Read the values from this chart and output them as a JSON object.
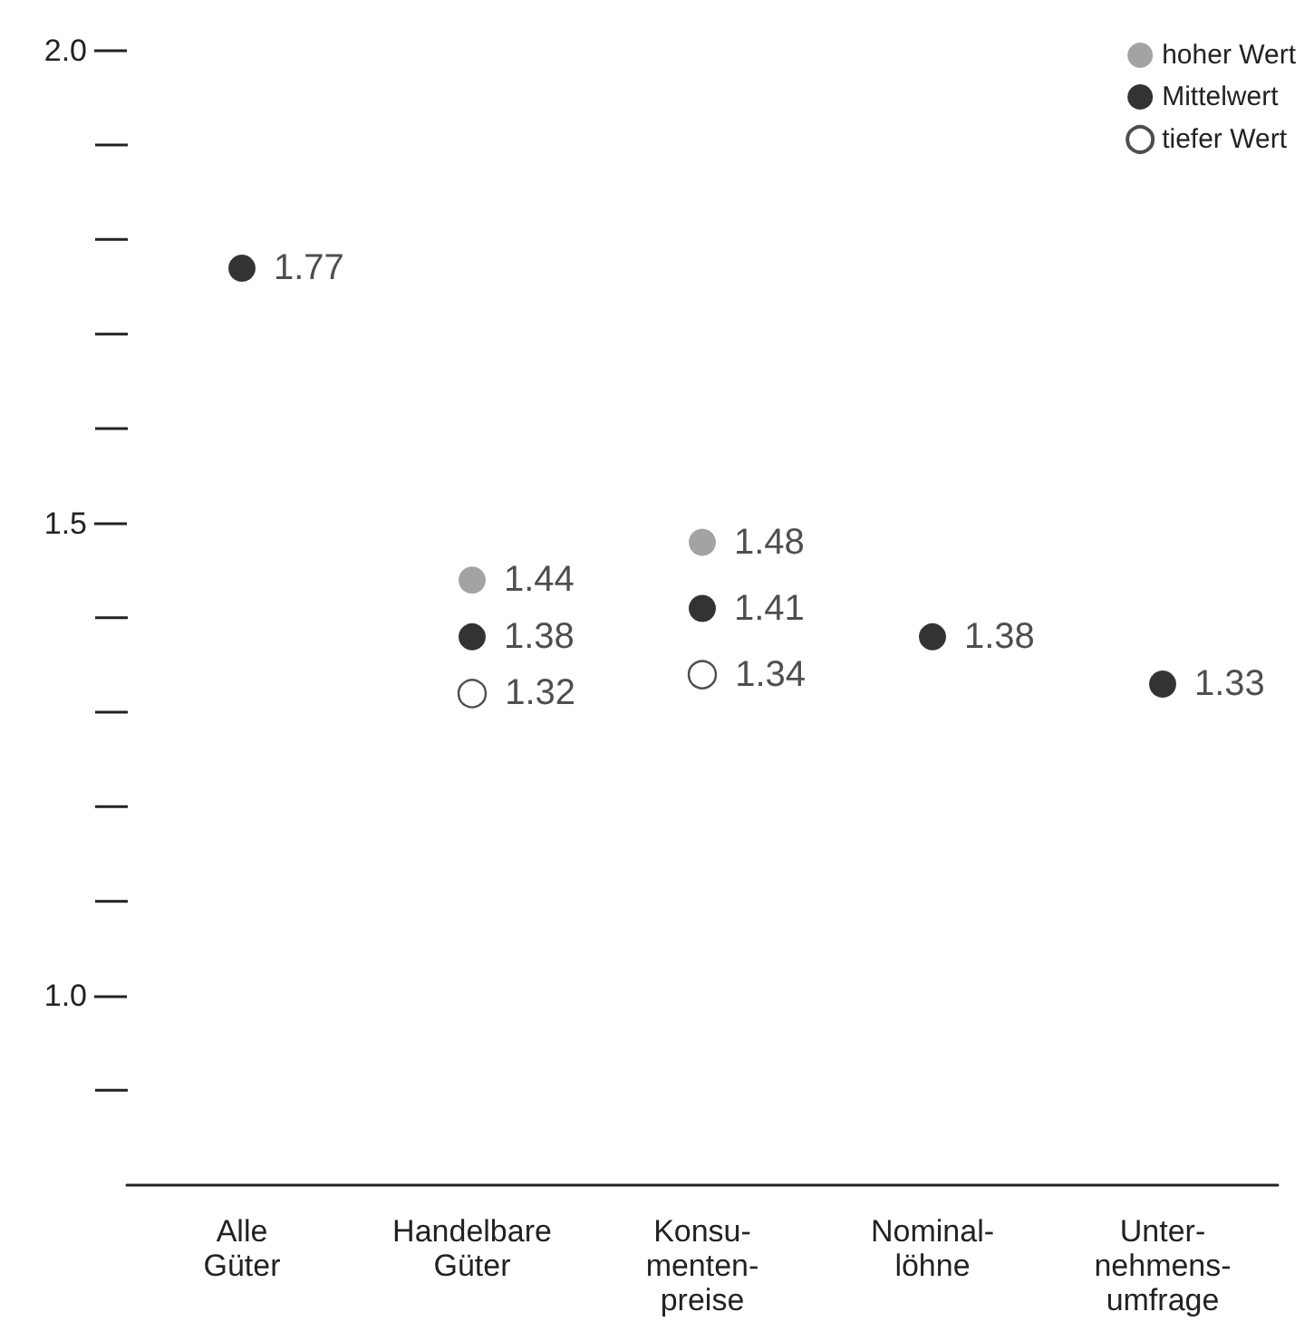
{
  "chart_data": {
    "type": "scatter",
    "categories": [
      "Alle\nGüter",
      "Handelbare\nGüter",
      "Konsu-\nmenten-\npreise",
      "Nominal-\nlöhne",
      "Unter-\nnehmens-\numfrage"
    ],
    "series": [
      {
        "name": "hoher Wert",
        "color": "#8c8c8c",
        "values": [
          null,
          1.44,
          1.48,
          null,
          null
        ]
      },
      {
        "name": "Mittelwert",
        "color": "#000000",
        "values": [
          1.77,
          1.38,
          1.41,
          1.38,
          1.33
        ]
      },
      {
        "name": "tiefer Wert",
        "color": "#ffffff",
        "values": [
          null,
          1.32,
          1.34,
          null,
          null
        ]
      }
    ],
    "ylim": [
      0.8,
      2.0
    ],
    "yticks": [
      {
        "value": 1,
        "label": "1.0"
      },
      {
        "value": 1.5,
        "label": "1.5"
      },
      {
        "value": 2,
        "label": "2.0"
      }
    ],
    "data_labels": true,
    "legend": "top right",
    "marker": "circle",
    "grid": false
  }
}
